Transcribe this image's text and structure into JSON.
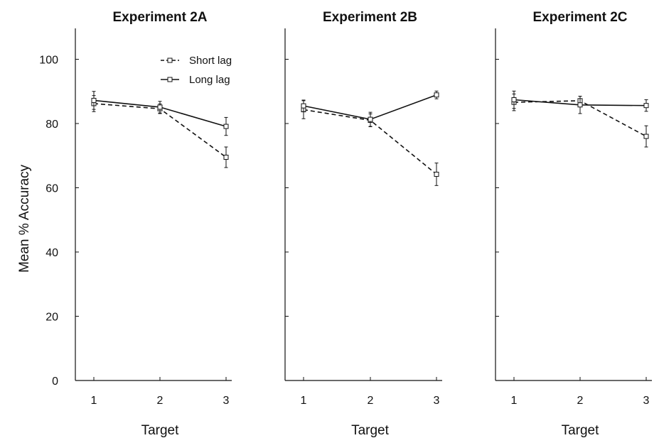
{
  "chart_data": [
    {
      "type": "line",
      "title": "Experiment 2A",
      "xlabel": "Target",
      "ylabel": "Mean % Accuracy",
      "categories": [
        "1",
        "2",
        "3"
      ],
      "ylim": [
        0,
        105
      ],
      "yticks": [
        0,
        20,
        40,
        60,
        80,
        100
      ],
      "grid": false,
      "legend": "top-right",
      "series": [
        {
          "name": "Short lag",
          "style": "dashed",
          "values": [
            86.2,
            84.6,
            69.5
          ],
          "errors": [
            2.5,
            1.5,
            3.2
          ]
        },
        {
          "name": "Long lag",
          "style": "solid",
          "values": [
            87.2,
            85.1,
            79.1
          ],
          "errors": [
            2.8,
            1.8,
            2.8
          ]
        }
      ]
    },
    {
      "type": "line",
      "title": "Experiment 2B",
      "xlabel": "Target",
      "ylabel": "",
      "categories": [
        "1",
        "2",
        "3"
      ],
      "ylim": [
        0,
        105
      ],
      "grid": false,
      "series": [
        {
          "name": "Short lag",
          "style": "dashed",
          "values": [
            84.3,
            81.0,
            64.2
          ],
          "errors": [
            2.8,
            2.0,
            3.5
          ]
        },
        {
          "name": "Long lag",
          "style": "solid",
          "values": [
            85.5,
            81.3,
            88.9
          ],
          "errors": [
            1.8,
            2.2,
            1.2
          ]
        }
      ]
    },
    {
      "type": "line",
      "title": "Experiment 2C",
      "xlabel": "Target",
      "ylabel": "",
      "categories": [
        "1",
        "2",
        "3"
      ],
      "ylim": [
        0,
        105
      ],
      "grid": false,
      "series": [
        {
          "name": "Short lag",
          "style": "dashed",
          "values": [
            86.6,
            87.1,
            76.0
          ],
          "errors": [
            2.6,
            1.4,
            3.3
          ]
        },
        {
          "name": "Long lag",
          "style": "solid",
          "values": [
            87.4,
            85.8,
            85.6
          ],
          "errors": [
            2.7,
            2.7,
            1.8
          ]
        }
      ]
    }
  ]
}
